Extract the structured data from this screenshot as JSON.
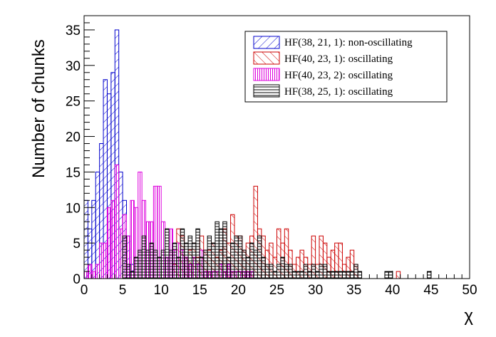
{
  "chart_data": {
    "type": "bar",
    "subtype": "histogram",
    "xlabel": "χ",
    "ylabel": "Number of chunks",
    "xlim": [
      0,
      50
    ],
    "ylim": [
      0,
      37
    ],
    "bin_width": 0.5,
    "x_ticks": [
      0,
      5,
      10,
      15,
      20,
      25,
      30,
      35,
      40,
      45,
      50
    ],
    "y_ticks": [
      0,
      5,
      10,
      15,
      20,
      25,
      30,
      35
    ],
    "legend_position": "top-right",
    "series": [
      {
        "name": "HF(38, 21, 1): non-oscillating",
        "color": "#0000cc",
        "hatch": "diagonal-up",
        "bin_starts": [
          0,
          0.5,
          1,
          1.5,
          2,
          2.5,
          3,
          3.5,
          4,
          4.5,
          5,
          5.5,
          6
        ],
        "counts": [
          11,
          7,
          11,
          15,
          19,
          28,
          26,
          29,
          35,
          15,
          11,
          6,
          2
        ]
      },
      {
        "name": "HF(40, 23, 1): oscillating",
        "color": "#cc0000",
        "hatch": "diagonal-down",
        "bin_starts": [
          11.5,
          12,
          12.5,
          13,
          13.5,
          14,
          14.5,
          15,
          15.5,
          16,
          16.5,
          17,
          17.5,
          18,
          18.5,
          19,
          19.5,
          20,
          20.5,
          21,
          21.5,
          22,
          22.5,
          23,
          23.5,
          24,
          24.5,
          25,
          25.5,
          26,
          26.5,
          27,
          27.5,
          28,
          28.5,
          29,
          29.5,
          30,
          30.5,
          31,
          31.5,
          32,
          32.5,
          33,
          33.5,
          34,
          34.5,
          35,
          35.5,
          40.5
        ],
        "counts": [
          2,
          7,
          6,
          3,
          4,
          5,
          3,
          6,
          4,
          4,
          5,
          3,
          4,
          7,
          5,
          9,
          6,
          6,
          4,
          5,
          6,
          13,
          7,
          6,
          4,
          5,
          3,
          7,
          5,
          7,
          4,
          2,
          3,
          4,
          3,
          2,
          6,
          2,
          6,
          5,
          3,
          4,
          5,
          5,
          2,
          3,
          4,
          2,
          1,
          1
        ]
      },
      {
        "name": "HF(40, 23, 2): oscillating",
        "color": "#dd00dd",
        "hatch": "vertical",
        "bin_starts": [
          0,
          0.5,
          1,
          1.5,
          2,
          2.5,
          3,
          3.5,
          4,
          4.5,
          5,
          5.5,
          6,
          6.5,
          7,
          7.5,
          8,
          8.5,
          9,
          9.5,
          10,
          10.5,
          11,
          11.5,
          12,
          12.5,
          13,
          13.5,
          14,
          14.5,
          15,
          15.5,
          16,
          16.5,
          17,
          17.5,
          18,
          18.5,
          19,
          19.5,
          20,
          20.5,
          21,
          21.5
        ],
        "counts": [
          1,
          2,
          1,
          2,
          5,
          5,
          10,
          11,
          16,
          7,
          9,
          6,
          11,
          10,
          15,
          11,
          8,
          8,
          13,
          13,
          8,
          3,
          7,
          4,
          5,
          4,
          3,
          2,
          3,
          2,
          4,
          1,
          1,
          1,
          1,
          2,
          1,
          2,
          1,
          1,
          1,
          1,
          1,
          1
        ]
      },
      {
        "name": "HF(38, 25, 1): oscillating",
        "color": "#000000",
        "hatch": "horizontal",
        "bin_starts": [
          5,
          5.5,
          6,
          6.5,
          7,
          7.5,
          8,
          8.5,
          9,
          9.5,
          10,
          10.5,
          11,
          11.5,
          12,
          12.5,
          13,
          13.5,
          14,
          14.5,
          15,
          15.5,
          16,
          16.5,
          17,
          17.5,
          18,
          18.5,
          19,
          19.5,
          20,
          20.5,
          21,
          21.5,
          22,
          22.5,
          23,
          23.5,
          24,
          24.5,
          25,
          25.5,
          26,
          26.5,
          27,
          27.5,
          28,
          28.5,
          29,
          29.5,
          30,
          30.5,
          31,
          31.5,
          32,
          32.5,
          33,
          33.5,
          34,
          34.5,
          35,
          35.5,
          39,
          39.5,
          44.5
        ],
        "counts": [
          6,
          2,
          1,
          3,
          4,
          6,
          4,
          5,
          4,
          3,
          4,
          7,
          4,
          5,
          3,
          7,
          5,
          6,
          5,
          7,
          3,
          4,
          6,
          5,
          8,
          7,
          8,
          3,
          5,
          6,
          6,
          4,
          3,
          5,
          4,
          6,
          3,
          2,
          2,
          1,
          2,
          3,
          2,
          2,
          1,
          1,
          1,
          2,
          1,
          2,
          1,
          2,
          2,
          1,
          1,
          1,
          1,
          1,
          1,
          1,
          2,
          1,
          1,
          1,
          1
        ]
      }
    ]
  }
}
